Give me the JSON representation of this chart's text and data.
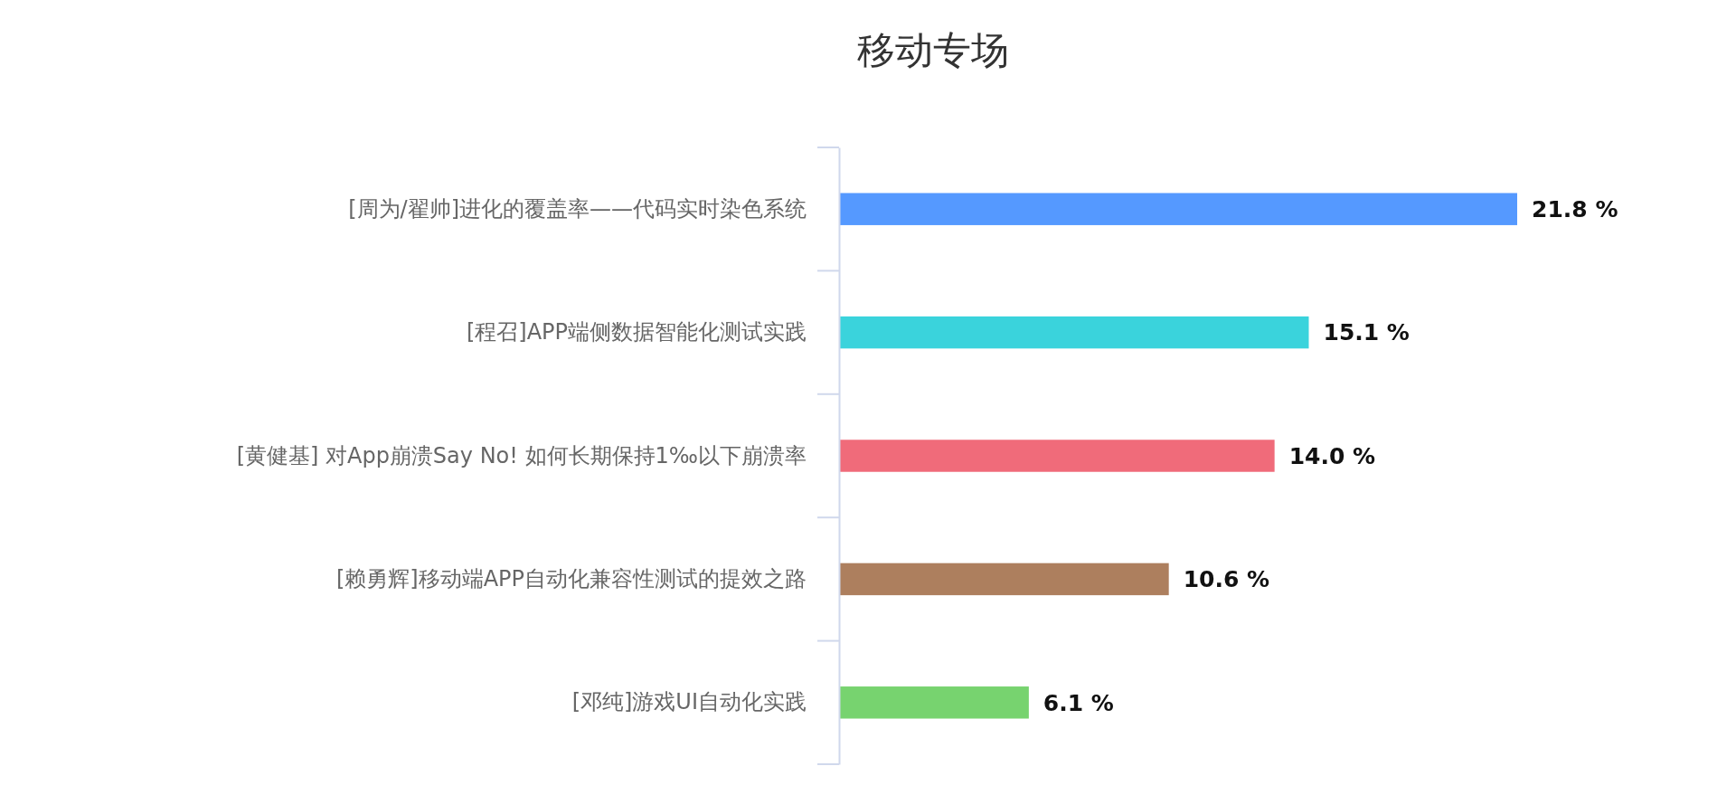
{
  "chart_data": {
    "type": "bar",
    "orientation": "horizontal",
    "title": "移动专场",
    "categories": [
      "[周为/翟帅]进化的覆盖率——代码实时染色系统",
      "[程召]APP端侧数据智能化测试实践",
      "[黄健基] 对App崩溃Say No! 如何长期保持1‰以下崩溃率",
      "[赖勇辉]移动端APP自动化兼容性测试的提效之路",
      "[邓纯]游戏UI自动化实践"
    ],
    "values": [
      21.8,
      15.1,
      14.0,
      10.6,
      6.1
    ],
    "value_labels": [
      "21.8 %",
      "15.1 %",
      "14.0 %",
      "10.6 %",
      "6.1 %"
    ],
    "colors": [
      "#5599ff",
      "#3ad3dc",
      "#f06b7a",
      "#ad7f5e",
      "#77d36f"
    ]
  }
}
